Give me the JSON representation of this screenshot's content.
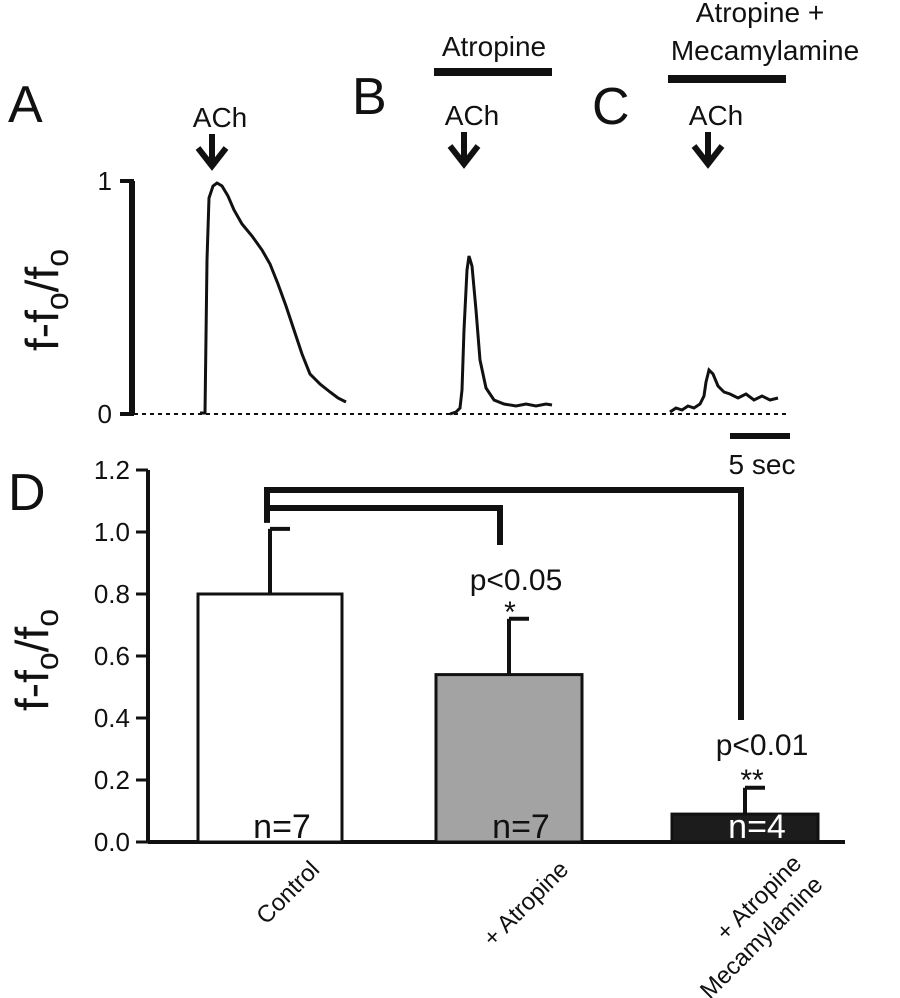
{
  "panels": {
    "a": "A",
    "b": "B",
    "c": "C",
    "d": "D"
  },
  "traces": {
    "stimulus_label": "ACh",
    "b_drug": "Atropine",
    "c_drug_line1": "Atropine +",
    "c_drug_line2": "Mecamylamine",
    "y_ticks": [
      "0",
      "1"
    ],
    "y_label_main": "f-f",
    "y_label_sub": "o",
    "y_label_slash": "/f",
    "scale_bar_label": "5 sec",
    "peaks": [
      {
        "name": "Control",
        "peak": 1.0,
        "end": 0.05
      },
      {
        "name": "Atropine",
        "peak": 0.67,
        "end": 0.04
      },
      {
        "name": "Atropine + Mecamylamine",
        "peak": 0.19,
        "end": 0.07
      }
    ]
  },
  "chart_data": {
    "type": "bar",
    "categories": [
      "Control",
      "+ Atropine",
      "+ Atropine + Mecamylamine"
    ],
    "category_lines": [
      [
        "Control"
      ],
      [
        "+ Atropine"
      ],
      [
        "+ Atropine",
        "+ Mecamylamine"
      ]
    ],
    "values": [
      0.8,
      0.54,
      0.09
    ],
    "errors": [
      0.21,
      0.18,
      0.085
    ],
    "n_labels": [
      "n=7",
      "n=7",
      "n=4"
    ],
    "colors": [
      "#ffffff",
      "#a3a3a3",
      "#1c1c1c"
    ],
    "ylim": [
      0,
      1.2
    ],
    "yticks": [
      "0.0",
      "0.2",
      "0.4",
      "0.6",
      "0.8",
      "1.0",
      "1.2"
    ],
    "ylabel_main": "f-f",
    "ylabel_sub": "o",
    "ylabel_slash": "/f",
    "ylabel_sub2": "o",
    "comparisons": [
      {
        "p": "p<0.05",
        "stars": "*"
      },
      {
        "p": "p<0.01",
        "stars": "**"
      }
    ]
  }
}
